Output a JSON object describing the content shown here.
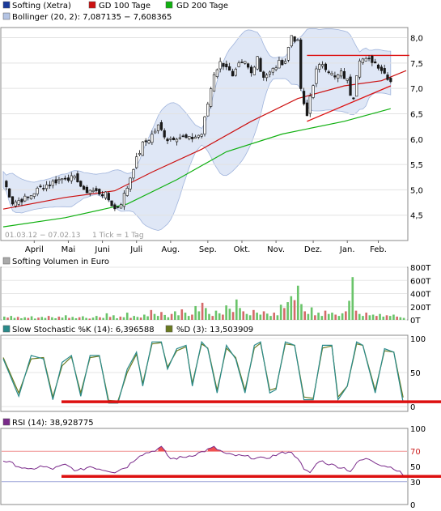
{
  "legend_main": [
    {
      "label": "Softing (Xetra)",
      "color": "#1a3a9a"
    },
    {
      "label": "GD 100 Tage",
      "color": "#cc1010"
    },
    {
      "label": "GD 200 Tage",
      "color": "#10b010"
    }
  ],
  "legend_bollinger": {
    "label": "Bollinger (20, 2): 7,087135 − 7,608365",
    "color": "#b4c4e4"
  },
  "footer_range": "01.03.12 − 07.02.13",
  "footer_tick": "1 Tick = 1 Tag",
  "volume_legend": "Softing Volumen in Euro",
  "stoch_legend": [
    {
      "label": "Slow Stochastic %K (14): 6,396588",
      "color": "#2a8a8a"
    },
    {
      "label": "%D (3): 13,503909",
      "color": "#6a7a20"
    }
  ],
  "rsi_legend": {
    "label": "RSI (14): 38,928775",
    "color": "#7a2a8a"
  },
  "colors": {
    "candle_up": "#ffffff",
    "candle_down": "#1a1a1a",
    "highlight_line": "#dd1010",
    "vol_up": "#6ac46a",
    "vol_down": "#d46a6a"
  },
  "chart_data": [
    {
      "type": "line",
      "title": "Softing (Xetra)",
      "x_tick_labels": [
        "April",
        "Mai",
        "Juni",
        "Juli",
        "Aug.",
        "Sep.",
        "Okt.",
        "Nov.",
        "Dez.",
        "Jan.",
        "Feb."
      ],
      "y_tick_labels": [
        "4,5",
        "5,0",
        "5,5",
        "6,0",
        "6,5",
        "7,0",
        "7,5",
        "8,0"
      ],
      "ylim": [
        4.0,
        8.2
      ],
      "price_anchors": [
        [
          0,
          5.2
        ],
        [
          3,
          4.75
        ],
        [
          8,
          4.85
        ],
        [
          12,
          5.05
        ],
        [
          16,
          5.15
        ],
        [
          20,
          5.25
        ],
        [
          24,
          5.2
        ],
        [
          26,
          4.95
        ],
        [
          28,
          5.0
        ],
        [
          33,
          4.9
        ],
        [
          36,
          4.62
        ],
        [
          38,
          4.75
        ],
        [
          40,
          5.05
        ],
        [
          42,
          5.45
        ],
        [
          44,
          5.75
        ],
        [
          45,
          5.9
        ],
        [
          47,
          6.0
        ],
        [
          50,
          6.25
        ],
        [
          53,
          6.0
        ],
        [
          56,
          6.05
        ],
        [
          60,
          6.0
        ],
        [
          64,
          6.1
        ],
        [
          66,
          6.7
        ],
        [
          68,
          7.3
        ],
        [
          70,
          7.5
        ],
        [
          72,
          7.45
        ],
        [
          74,
          7.2
        ],
        [
          76,
          7.45
        ],
        [
          78,
          7.5
        ],
        [
          80,
          7.3
        ],
        [
          82,
          7.65
        ],
        [
          83,
          7.35
        ],
        [
          84,
          7.25
        ],
        [
          86,
          7.3
        ],
        [
          89,
          7.5
        ],
        [
          91,
          7.55
        ],
        [
          93,
          8.05
        ],
        [
          95,
          7.9
        ],
        [
          96,
          7.0
        ],
        [
          97,
          6.65
        ],
        [
          98,
          6.45
        ],
        [
          99,
          6.85
        ],
        [
          101,
          7.35
        ],
        [
          103,
          7.5
        ],
        [
          105,
          7.35
        ],
        [
          107,
          7.2
        ],
        [
          109,
          7.3
        ],
        [
          111,
          7.15
        ],
        [
          112,
          6.9
        ],
        [
          113,
          6.85
        ],
        [
          114,
          7.3
        ],
        [
          115,
          7.6
        ],
        [
          117,
          7.55
        ],
        [
          119,
          7.55
        ],
        [
          121,
          7.45
        ],
        [
          123,
          7.3
        ],
        [
          125,
          7.15
        ]
      ],
      "series": [
        {
          "name": "GD 100 Tage",
          "points": [
            [
              0,
              4.62
            ],
            [
              20,
              4.85
            ],
            [
              36,
              4.98
            ],
            [
              48,
              5.35
            ],
            [
              64,
              5.8
            ],
            [
              80,
              6.35
            ],
            [
              95,
              6.8
            ],
            [
              110,
              7.05
            ],
            [
              122,
              7.15
            ],
            [
              130,
              7.35
            ]
          ]
        },
        {
          "name": "GD 200 Tage",
          "points": [
            [
              0,
              4.27
            ],
            [
              20,
              4.45
            ],
            [
              40,
              4.72
            ],
            [
              56,
              5.2
            ],
            [
              72,
              5.75
            ],
            [
              90,
              6.1
            ],
            [
              110,
              6.35
            ],
            [
              125,
              6.6
            ]
          ]
        }
      ],
      "trendlines": [
        {
          "from": [
            98,
            6.35
          ],
          "to": [
            125,
            7.05
          ]
        },
        {
          "from": [
            98,
            7.65
          ],
          "to": [
            131,
            7.65
          ]
        }
      ]
    },
    {
      "type": "bar",
      "title": "Softing Volumen in Euro",
      "y_tick_labels": [
        "0T",
        "200T",
        "400T",
        "600T",
        "800T"
      ],
      "ylim": [
        0,
        800
      ],
      "values": [
        50,
        35,
        60,
        30,
        45,
        25,
        40,
        30,
        55,
        20,
        35,
        45,
        30,
        60,
        40,
        25,
        50,
        35,
        70,
        30,
        45,
        25,
        40,
        55,
        30,
        20,
        35,
        60,
        40,
        30,
        100,
        45,
        70,
        25,
        50,
        40,
        110,
        30,
        60,
        45,
        35,
        80,
        55,
        150,
        90,
        60,
        120,
        75,
        40,
        90,
        130,
        70,
        160,
        110,
        60,
        80,
        210,
        130,
        260,
        180,
        90,
        60,
        140,
        100,
        80,
        220,
        170,
        120,
        310,
        180,
        130,
        90,
        70,
        150,
        110,
        80,
        130,
        95,
        60,
        110,
        70,
        230,
        180,
        270,
        360,
        300,
        520,
        240,
        130,
        90,
        190,
        70,
        110,
        60,
        140,
        90,
        110,
        80,
        60,
        100,
        130,
        290,
        650,
        140,
        90,
        60,
        110,
        70,
        80,
        60,
        90,
        50,
        70,
        60,
        80,
        50,
        40,
        30
      ]
    },
    {
      "type": "line",
      "title": "Slow Stochastic",
      "y_tick_labels": [
        "0",
        "50",
        "100"
      ],
      "ylim": [
        0,
        100
      ],
      "k_anchors": [
        [
          0,
          70
        ],
        [
          5,
          15
        ],
        [
          9,
          75
        ],
        [
          13,
          70
        ],
        [
          16,
          10
        ],
        [
          19,
          65
        ],
        [
          22,
          75
        ],
        [
          25,
          15
        ],
        [
          28,
          75
        ],
        [
          31,
          75
        ],
        [
          34,
          5
        ],
        [
          37,
          5
        ],
        [
          40,
          55
        ],
        [
          43,
          80
        ],
        [
          45,
          30
        ],
        [
          48,
          95
        ],
        [
          51,
          95
        ],
        [
          53,
          55
        ],
        [
          56,
          85
        ],
        [
          59,
          90
        ],
        [
          61,
          30
        ],
        [
          64,
          95
        ],
        [
          66,
          85
        ],
        [
          69,
          20
        ],
        [
          72,
          90
        ],
        [
          75,
          70
        ],
        [
          78,
          20
        ],
        [
          81,
          90
        ],
        [
          83,
          95
        ],
        [
          86,
          20
        ],
        [
          88,
          25
        ],
        [
          91,
          95
        ],
        [
          94,
          90
        ],
        [
          97,
          10
        ],
        [
          100,
          10
        ],
        [
          103,
          90
        ],
        [
          106,
          90
        ],
        [
          108,
          10
        ],
        [
          111,
          30
        ],
        [
          114,
          95
        ],
        [
          116,
          90
        ],
        [
          120,
          20
        ],
        [
          123,
          85
        ],
        [
          126,
          80
        ],
        [
          129,
          6
        ]
      ],
      "d_anchors": [
        [
          0,
          72
        ],
        [
          5,
          20
        ],
        [
          9,
          70
        ],
        [
          13,
          72
        ],
        [
          16,
          14
        ],
        [
          19,
          60
        ],
        [
          22,
          73
        ],
        [
          25,
          20
        ],
        [
          28,
          72
        ],
        [
          31,
          74
        ],
        [
          34,
          9
        ],
        [
          37,
          8
        ],
        [
          40,
          50
        ],
        [
          43,
          77
        ],
        [
          45,
          34
        ],
        [
          48,
          92
        ],
        [
          51,
          94
        ],
        [
          53,
          58
        ],
        [
          56,
          82
        ],
        [
          59,
          88
        ],
        [
          61,
          34
        ],
        [
          64,
          92
        ],
        [
          66,
          86
        ],
        [
          69,
          24
        ],
        [
          72,
          86
        ],
        [
          75,
          72
        ],
        [
          78,
          24
        ],
        [
          81,
          86
        ],
        [
          83,
          93
        ],
        [
          86,
          24
        ],
        [
          88,
          27
        ],
        [
          91,
          92
        ],
        [
          94,
          90
        ],
        [
          97,
          14
        ],
        [
          100,
          12
        ],
        [
          103,
          86
        ],
        [
          106,
          89
        ],
        [
          108,
          14
        ],
        [
          111,
          30
        ],
        [
          114,
          92
        ],
        [
          116,
          90
        ],
        [
          120,
          24
        ],
        [
          123,
          82
        ],
        [
          126,
          80
        ],
        [
          129,
          13.5
        ]
      ],
      "marker_level": 7
    },
    {
      "type": "line",
      "title": "RSI",
      "y_tick_labels": [
        "0",
        "30",
        "50",
        "70",
        "100"
      ],
      "ylim": [
        0,
        100
      ],
      "rsi_anchors": [
        [
          0,
          58
        ],
        [
          4,
          52
        ],
        [
          8,
          45
        ],
        [
          12,
          50
        ],
        [
          16,
          47
        ],
        [
          20,
          52
        ],
        [
          24,
          44
        ],
        [
          28,
          50
        ],
        [
          32,
          46
        ],
        [
          36,
          43
        ],
        [
          40,
          50
        ],
        [
          44,
          65
        ],
        [
          48,
          70
        ],
        [
          51,
          75
        ],
        [
          54,
          60
        ],
        [
          58,
          62
        ],
        [
          62,
          66
        ],
        [
          66,
          72
        ],
        [
          68,
          75
        ],
        [
          72,
          66
        ],
        [
          76,
          64
        ],
        [
          80,
          62
        ],
        [
          84,
          60
        ],
        [
          88,
          65
        ],
        [
          92,
          70
        ],
        [
          95,
          62
        ],
        [
          97,
          45
        ],
        [
          99,
          42
        ],
        [
          102,
          58
        ],
        [
          106,
          52
        ],
        [
          110,
          48
        ],
        [
          112,
          44
        ],
        [
          115,
          58
        ],
        [
          118,
          60
        ],
        [
          122,
          52
        ],
        [
          126,
          48
        ],
        [
          129,
          39
        ]
      ],
      "ref_levels": [
        30,
        70
      ],
      "marker_level": 37
    }
  ]
}
